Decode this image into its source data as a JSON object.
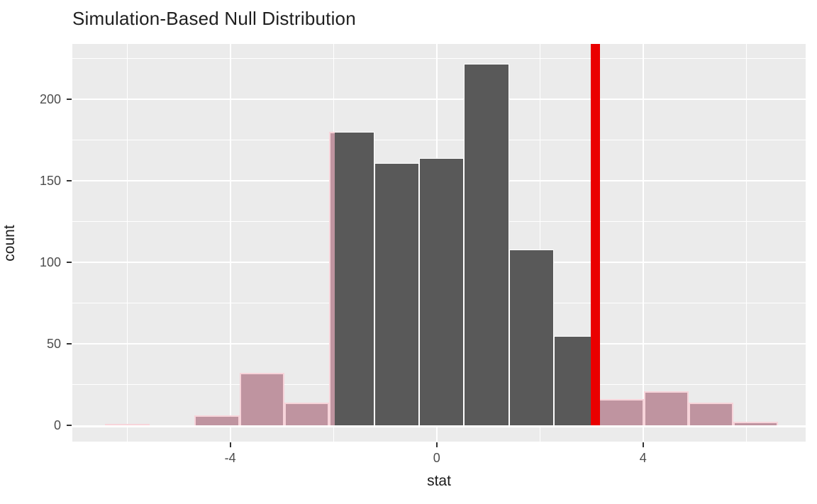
{
  "title": "Simulation-Based Null Distribution",
  "chart_data": {
    "type": "bar",
    "subtype": "histogram",
    "title": "Simulation-Based Null Distribution",
    "xlabel": "stat",
    "ylabel": "count",
    "legend": "none",
    "grid": "on",
    "x_axis": {
      "ticks": [
        -4,
        0,
        4
      ],
      "minor_gridlines": [
        -6,
        -2,
        2,
        6
      ],
      "range": [
        -7.06,
        7.15
      ]
    },
    "y_axis": {
      "ticks": [
        0,
        50,
        100,
        150,
        200
      ],
      "minor_gridlines": [
        25,
        75,
        125,
        175,
        225
      ],
      "range": [
        -10,
        234
      ]
    },
    "bin_width": 0.87,
    "bins": [
      {
        "x0": -6.43,
        "x1": -5.56,
        "count": 1,
        "region": "tail"
      },
      {
        "x0": -5.56,
        "x1": -4.69,
        "count": 0,
        "region": "tail"
      },
      {
        "x0": -4.69,
        "x1": -3.82,
        "count": 6,
        "region": "tail"
      },
      {
        "x0": -3.82,
        "x1": -2.95,
        "count": 32,
        "region": "tail"
      },
      {
        "x0": -2.95,
        "x1": -2.08,
        "count": 14,
        "region": "tail"
      },
      {
        "x0": -2.08,
        "x1": -1.21,
        "count": 180,
        "region": "split",
        "split_at": -1.98,
        "tail_side": "left"
      },
      {
        "x0": -1.21,
        "x1": -0.34,
        "count": 161,
        "region": "null"
      },
      {
        "x0": -0.34,
        "x1": 0.53,
        "count": 164,
        "region": "null"
      },
      {
        "x0": 0.53,
        "x1": 1.4,
        "count": 222,
        "region": "null"
      },
      {
        "x0": 1.4,
        "x1": 2.27,
        "count": 108,
        "region": "null"
      },
      {
        "x0": 2.27,
        "x1": 3.14,
        "count": 55,
        "region": "split",
        "split_at": 3.08,
        "tail_side": "right"
      },
      {
        "x0": 3.14,
        "x1": 4.01,
        "count": 16,
        "region": "tail"
      },
      {
        "x0": 4.01,
        "x1": 4.88,
        "count": 21,
        "region": "tail"
      },
      {
        "x0": 4.88,
        "x1": 5.75,
        "count": 14,
        "region": "tail"
      },
      {
        "x0": 5.75,
        "x1": 6.62,
        "count": 2,
        "region": "tail"
      }
    ],
    "observed_stat": 3.08,
    "shade": {
      "direction": "two-sided",
      "left_boundary": -1.98,
      "right_boundary": 3.08
    },
    "colors": {
      "null_bar_fill": "#595959",
      "null_bar_border": "#ffffff",
      "tail_bar_fill": "#bf94a0",
      "tail_bar_border": "#f7d4da",
      "observed_line": "#ea0000",
      "panel_background": "#ebebeb",
      "gridline": "#ffffff",
      "tick_mark": "#333333",
      "tick_label": "#4d4d4d",
      "text": "#1a1a1a"
    }
  }
}
